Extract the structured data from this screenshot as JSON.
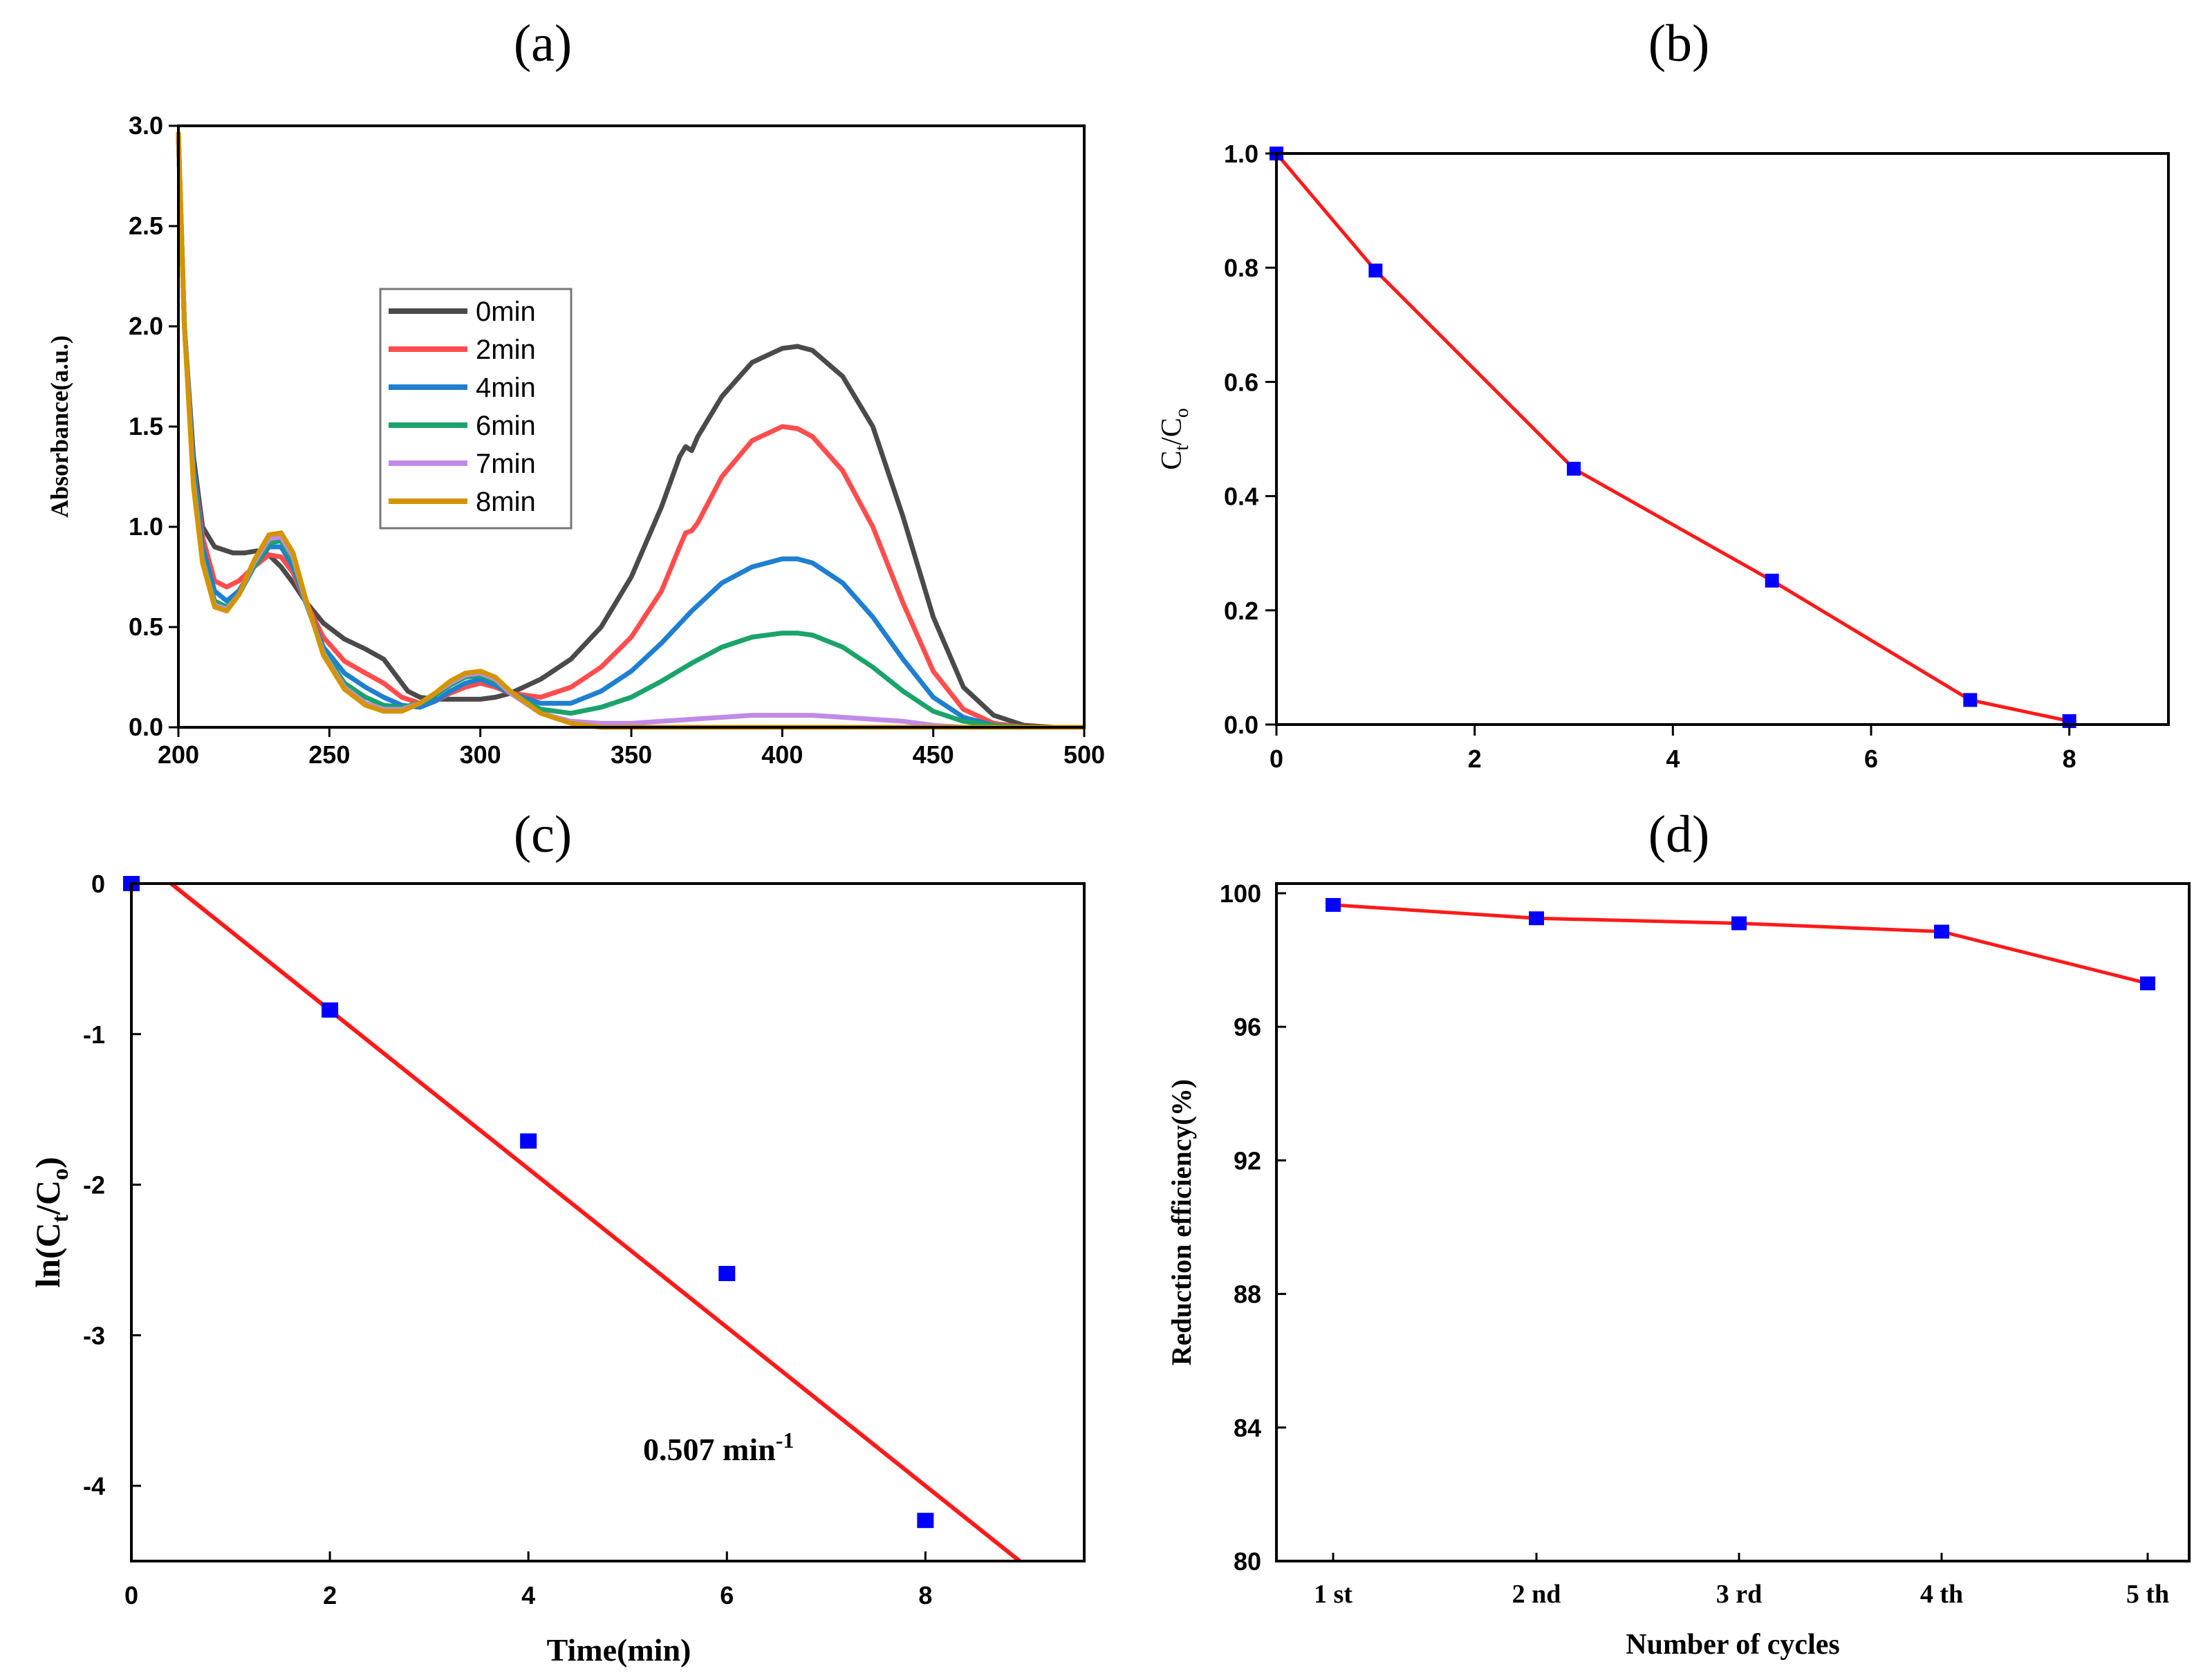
{
  "colors": {
    "red_line": "#ff1a1a",
    "blue_marker": "#0000ff",
    "spectra": {
      "0min": "#4a4a4a",
      "2min": "#ff4d4d",
      "4min": "#1f7fd0",
      "6min": "#1aa36b",
      "7min": "#c08be8",
      "8min": "#d49400"
    }
  },
  "chart_data": [
    {
      "id": "a",
      "panel_label": "(a)",
      "type": "line",
      "xlabel": "",
      "ylabel": "Absorbance(a.u.)",
      "xlim": [
        200,
        500
      ],
      "ylim": [
        0,
        3.0
      ],
      "xticks": [
        "200",
        "250",
        "300",
        "350",
        "400",
        "450",
        "500"
      ],
      "yticks": [
        "0.0",
        "0.5",
        "1.0",
        "1.5",
        "2.0",
        "2.5",
        "3.0"
      ],
      "legend_position": "center-left",
      "series": [
        {
          "name": "0min",
          "x": [
            200,
            202,
            205,
            208,
            212,
            218,
            222,
            226,
            230,
            234,
            238,
            242,
            248,
            255,
            262,
            268,
            272,
            276,
            280,
            285,
            290,
            295,
            300,
            305,
            310,
            320,
            330,
            340,
            350,
            360,
            366,
            368,
            370,
            372,
            380,
            390,
            400,
            405,
            410,
            420,
            430,
            440,
            450,
            460,
            470,
            480,
            490,
            500
          ],
          "y": [
            2.95,
            2.0,
            1.35,
            1.0,
            0.9,
            0.87,
            0.87,
            0.88,
            0.86,
            0.8,
            0.72,
            0.63,
            0.52,
            0.44,
            0.39,
            0.34,
            0.26,
            0.18,
            0.15,
            0.14,
            0.14,
            0.14,
            0.14,
            0.15,
            0.17,
            0.24,
            0.34,
            0.5,
            0.75,
            1.1,
            1.35,
            1.4,
            1.38,
            1.45,
            1.65,
            1.82,
            1.89,
            1.9,
            1.88,
            1.75,
            1.5,
            1.05,
            0.55,
            0.2,
            0.06,
            0.01,
            0.0,
            0.0
          ]
        },
        {
          "name": "2min",
          "x": [
            200,
            202,
            205,
            208,
            212,
            216,
            220,
            225,
            230,
            234,
            238,
            242,
            248,
            255,
            262,
            268,
            274,
            280,
            285,
            290,
            295,
            300,
            305,
            310,
            320,
            330,
            340,
            350,
            360,
            366,
            368,
            370,
            372,
            380,
            390,
            400,
            405,
            410,
            420,
            430,
            440,
            450,
            460,
            470,
            480,
            490,
            500
          ],
          "y": [
            2.95,
            2.0,
            1.3,
            0.95,
            0.73,
            0.7,
            0.73,
            0.8,
            0.86,
            0.85,
            0.77,
            0.63,
            0.45,
            0.33,
            0.27,
            0.22,
            0.15,
            0.12,
            0.13,
            0.17,
            0.2,
            0.22,
            0.2,
            0.17,
            0.15,
            0.2,
            0.3,
            0.45,
            0.68,
            0.9,
            0.97,
            0.98,
            1.02,
            1.25,
            1.43,
            1.5,
            1.49,
            1.45,
            1.28,
            1.0,
            0.62,
            0.28,
            0.09,
            0.02,
            0.0,
            0.0,
            0.0
          ]
        },
        {
          "name": "4min",
          "x": [
            200,
            202,
            205,
            208,
            212,
            216,
            220,
            225,
            230,
            234,
            238,
            242,
            248,
            255,
            262,
            268,
            274,
            280,
            285,
            290,
            295,
            300,
            305,
            310,
            320,
            330,
            340,
            350,
            360,
            370,
            380,
            390,
            400,
            405,
            410,
            420,
            430,
            440,
            450,
            460,
            470,
            480,
            490,
            500
          ],
          "y": [
            2.95,
            2.0,
            1.3,
            0.9,
            0.68,
            0.63,
            0.68,
            0.8,
            0.9,
            0.9,
            0.8,
            0.63,
            0.4,
            0.27,
            0.2,
            0.15,
            0.11,
            0.1,
            0.13,
            0.18,
            0.22,
            0.24,
            0.21,
            0.17,
            0.12,
            0.12,
            0.18,
            0.28,
            0.42,
            0.58,
            0.72,
            0.8,
            0.84,
            0.84,
            0.82,
            0.72,
            0.55,
            0.34,
            0.15,
            0.05,
            0.01,
            0.0,
            0.0,
            0.0
          ]
        },
        {
          "name": "6min",
          "x": [
            200,
            202,
            205,
            208,
            212,
            216,
            220,
            225,
            230,
            234,
            238,
            242,
            248,
            255,
            262,
            268,
            274,
            280,
            285,
            290,
            295,
            300,
            305,
            310,
            320,
            330,
            340,
            350,
            360,
            370,
            380,
            390,
            400,
            405,
            410,
            420,
            430,
            440,
            450,
            460,
            470,
            480,
            490,
            500
          ],
          "y": [
            2.95,
            2.0,
            1.25,
            0.85,
            0.63,
            0.6,
            0.66,
            0.8,
            0.92,
            0.93,
            0.83,
            0.63,
            0.38,
            0.22,
            0.15,
            0.11,
            0.1,
            0.12,
            0.16,
            0.21,
            0.25,
            0.26,
            0.23,
            0.17,
            0.09,
            0.07,
            0.1,
            0.15,
            0.23,
            0.32,
            0.4,
            0.45,
            0.47,
            0.47,
            0.46,
            0.4,
            0.3,
            0.18,
            0.08,
            0.03,
            0.01,
            0.0,
            0.0,
            0.0
          ]
        },
        {
          "name": "7min",
          "x": [
            200,
            202,
            205,
            208,
            212,
            216,
            220,
            225,
            230,
            234,
            238,
            242,
            248,
            255,
            262,
            268,
            274,
            280,
            285,
            290,
            295,
            300,
            305,
            310,
            320,
            330,
            340,
            350,
            360,
            370,
            380,
            390,
            400,
            410,
            420,
            430,
            440,
            450,
            460,
            470,
            480,
            490,
            500
          ],
          "y": [
            2.95,
            2.0,
            1.22,
            0.83,
            0.61,
            0.59,
            0.66,
            0.82,
            0.94,
            0.95,
            0.85,
            0.64,
            0.37,
            0.2,
            0.12,
            0.09,
            0.09,
            0.12,
            0.17,
            0.22,
            0.26,
            0.27,
            0.24,
            0.17,
            0.07,
            0.03,
            0.02,
            0.02,
            0.03,
            0.04,
            0.05,
            0.06,
            0.06,
            0.06,
            0.05,
            0.04,
            0.03,
            0.01,
            0.0,
            0.0,
            0.0,
            0.0,
            0.0
          ]
        },
        {
          "name": "8min",
          "x": [
            200,
            202,
            205,
            208,
            212,
            216,
            220,
            225,
            230,
            234,
            238,
            242,
            248,
            255,
            262,
            268,
            274,
            280,
            285,
            290,
            295,
            300,
            305,
            310,
            320,
            330,
            340,
            350,
            360,
            400,
            450,
            500
          ],
          "y": [
            2.97,
            2.0,
            1.2,
            0.82,
            0.6,
            0.58,
            0.66,
            0.83,
            0.96,
            0.97,
            0.87,
            0.65,
            0.36,
            0.19,
            0.11,
            0.08,
            0.08,
            0.12,
            0.17,
            0.23,
            0.27,
            0.28,
            0.25,
            0.18,
            0.07,
            0.02,
            0.0,
            0.0,
            0.0,
            0.0,
            0.0,
            0.0
          ]
        }
      ]
    },
    {
      "id": "b",
      "panel_label": "(b)",
      "type": "line",
      "xlabel": "",
      "ylabel": "Ct/Co",
      "ylabel_main": "C",
      "ylabel_sub1": "t",
      "ylabel_mid": "/C",
      "ylabel_sub2": "o",
      "xlim": [
        0,
        9
      ],
      "ylim": [
        0,
        1.0
      ],
      "xticks": [
        "0",
        "2",
        "4",
        "6",
        "8"
      ],
      "xtick_values": [
        0,
        2,
        4,
        6,
        8
      ],
      "yticks": [
        "0.0",
        "0.2",
        "0.4",
        "0.6",
        "0.8",
        "1.0"
      ],
      "x": [
        0,
        1,
        3,
        5,
        7,
        8
      ],
      "values": [
        1.0,
        0.795,
        0.448,
        0.252,
        0.043,
        0.006
      ]
    },
    {
      "id": "c",
      "panel_label": "(c)",
      "type": "scatter",
      "xlabel": "Time(min)",
      "ylabel": "ln(Ct/Co)",
      "ylabel_main": "ln(C",
      "ylabel_sub1": "t",
      "ylabel_mid": "/C",
      "ylabel_sub2": "o",
      "ylabel_end": ")",
      "xlim": [
        0,
        9.6
      ],
      "ylim": [
        -4.5,
        0
      ],
      "xticks": [
        "0",
        "2",
        "4",
        "6",
        "8"
      ],
      "xtick_values": [
        0,
        2,
        4,
        6,
        8
      ],
      "yticks": [
        "0",
        "-1",
        "-2",
        "-3",
        "-4"
      ],
      "ytick_values": [
        0,
        -1,
        -2,
        -3,
        -4
      ],
      "x": [
        0,
        2,
        4,
        6,
        8
      ],
      "values": [
        0,
        -0.84,
        -1.71,
        -2.59,
        -4.23
      ],
      "fit": {
        "x": [
          0.4,
          8.95
        ],
        "y": [
          0,
          -4.5
        ]
      },
      "annotation": "0.507 min",
      "annotation_sup": "-1"
    },
    {
      "id": "d",
      "panel_label": "(d)",
      "type": "line",
      "xlabel": "Number of cycles",
      "ylabel": "Reduction efficiency(%)",
      "categories": [
        "1 st",
        "2 nd",
        "3 rd",
        "4 th",
        "5 th"
      ],
      "ylim": [
        80,
        100
      ],
      "yticks": [
        "80",
        "84",
        "88",
        "92",
        "96",
        "100"
      ],
      "ytick_values": [
        80,
        84,
        88,
        92,
        96,
        100
      ],
      "values": [
        99.65,
        99.25,
        99.1,
        98.85,
        97.3
      ]
    }
  ]
}
